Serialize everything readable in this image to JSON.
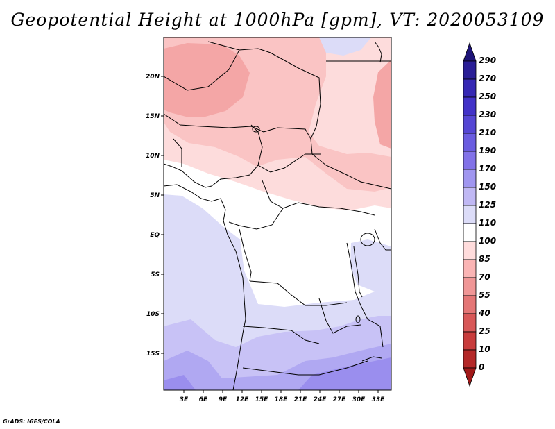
{
  "title": "Geopotential Height at 1000hPa [gpm], VT: 2020053109",
  "credit": "GrADS: IGES/COLA",
  "map": {
    "lat_labels": [
      "20N",
      "15N",
      "10N",
      "5N",
      "EQ",
      "5S",
      "10S",
      "15S"
    ],
    "lon_labels": [
      "3E",
      "6E",
      "9E",
      "12E",
      "15E",
      "18E",
      "21E",
      "24E",
      "27E",
      "30E",
      "33E"
    ]
  },
  "colorbar": {
    "labels": [
      "290",
      "270",
      "250",
      "230",
      "210",
      "190",
      "170",
      "150",
      "125",
      "110",
      "100",
      "85",
      "70",
      "55",
      "40",
      "25",
      "10",
      "0"
    ],
    "colors": [
      "#1e1478",
      "#2a1e96",
      "#3628b4",
      "#4232c8",
      "#5546d4",
      "#6a5ce0",
      "#8272e8",
      "#a096f0",
      "#c0b8f4",
      "#dcdcf8",
      "#ffffff",
      "#ffdcdc",
      "#fab4b4",
      "#f09696",
      "#e47676",
      "#d85858",
      "#c83c3c",
      "#b42828",
      "#a01818"
    ]
  }
}
